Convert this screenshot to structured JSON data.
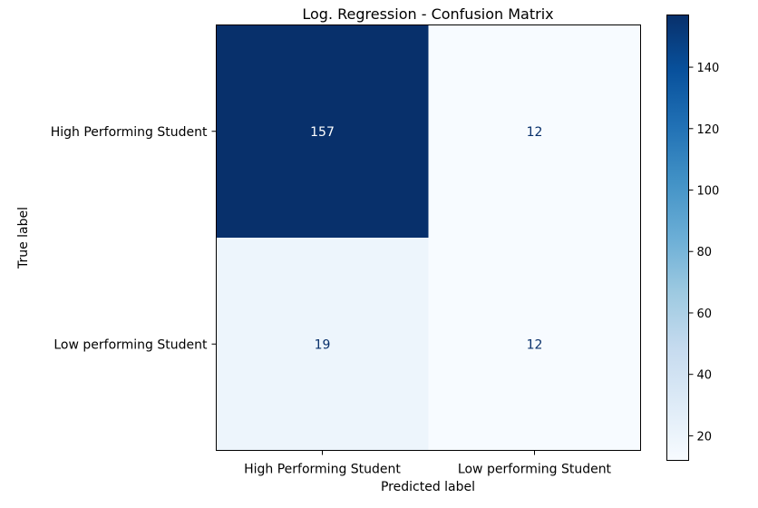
{
  "chart_data": {
    "type": "heatmap",
    "title": "Log. Regression - Confusion Matrix",
    "xlabel": "Predicted label",
    "ylabel": "True label",
    "x_categories": [
      "High Performing Student",
      "Low performing Student"
    ],
    "y_categories": [
      "High Performing Student",
      "Low performing Student"
    ],
    "values": [
      [
        157,
        12
      ],
      [
        19,
        12
      ]
    ],
    "colormap": "Blues",
    "colorbar": {
      "min": 12,
      "max": 157,
      "ticks": [
        20,
        40,
        60,
        80,
        100,
        120,
        140
      ]
    },
    "colors": {
      "low": "#f7fbff",
      "high": "#08306b",
      "text_on_light": "#08306b",
      "text_on_dark": "#ffffff"
    }
  }
}
